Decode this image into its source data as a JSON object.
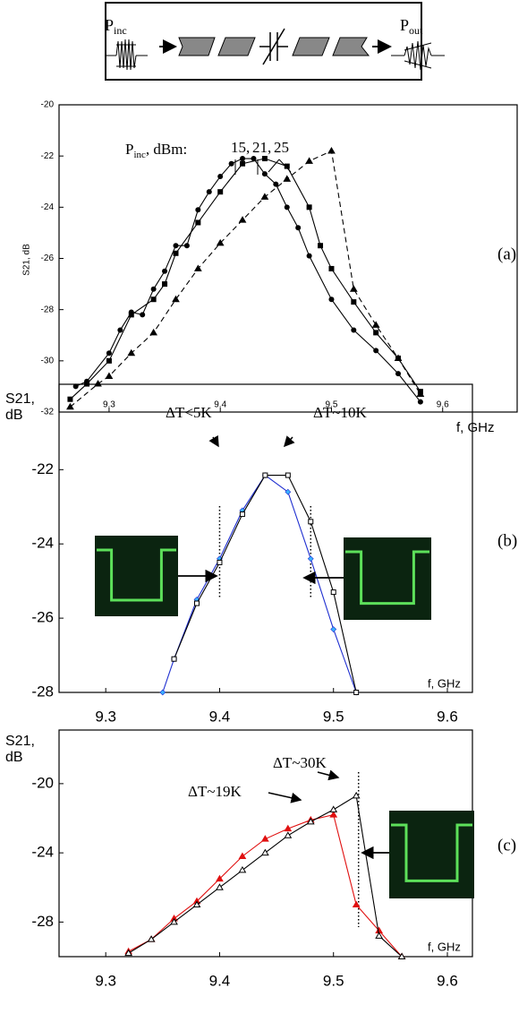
{
  "diagram": {
    "input_label": "P",
    "input_sub": "inc",
    "output_label": "P",
    "output_sub": "out"
  },
  "chart_data": [
    {
      "type": "line",
      "panel_label": "(a)",
      "y_label": "S21, dB",
      "x_label": "f, GHz",
      "annotation": [
        "P",
        "inc",
        ", dBm:"
      ],
      "xlim": [
        9.255,
        9.667
      ],
      "ylim": [
        -32,
        -20
      ],
      "xticks": [
        9.3,
        9.4,
        9.5,
        9.6
      ],
      "yticks": [
        -32,
        -30,
        -28,
        -26,
        -24,
        -22,
        -20
      ],
      "series": [
        {
          "name": "15,",
          "color": "#000000",
          "marker": "circle",
          "dash": false,
          "x": [
            9.27,
            9.28,
            9.3,
            9.31,
            9.32,
            9.33,
            9.34,
            9.35,
            9.36,
            9.37,
            9.38,
            9.39,
            9.4,
            9.41,
            9.42,
            9.43,
            9.44,
            9.45,
            9.46,
            9.47,
            9.48,
            9.5,
            9.52,
            9.54,
            9.56,
            9.58
          ],
          "values": [
            -31,
            -30.8,
            -29.7,
            -28.8,
            -28.1,
            -28.2,
            -27.2,
            -26.5,
            -25.5,
            -25.5,
            -24.1,
            -23.4,
            -22.8,
            -22.3,
            -22.1,
            -22.1,
            -22.7,
            -23.1,
            -24,
            -24.8,
            -25.9,
            -27.6,
            -28.8,
            -29.6,
            -30.5,
            -31.6
          ]
        },
        {
          "name": "21,",
          "color": "#000000",
          "marker": "square",
          "dash": false,
          "x": [
            9.265,
            9.28,
            9.3,
            9.32,
            9.34,
            9.35,
            9.36,
            9.38,
            9.4,
            9.42,
            9.44,
            9.46,
            9.48,
            9.49,
            9.5,
            9.52,
            9.54,
            9.56,
            9.58
          ],
          "values": [
            -31.5,
            -30.9,
            -30,
            -28.2,
            -27.6,
            -27,
            -25.8,
            -24.6,
            -23.4,
            -22.3,
            -22.1,
            -22.4,
            -24,
            -25.5,
            -26.4,
            -27.7,
            -28.9,
            -29.9,
            -31.2
          ]
        },
        {
          "name": "25",
          "color": "#000000",
          "marker": "triangle",
          "dash": true,
          "x": [
            9.265,
            9.29,
            9.3,
            9.32,
            9.34,
            9.36,
            9.38,
            9.4,
            9.42,
            9.44,
            9.46,
            9.48,
            9.5,
            9.52,
            9.54,
            9.56,
            9.58
          ],
          "values": [
            -31.8,
            -30.9,
            -30.6,
            -29.7,
            -28.9,
            -27.6,
            -26.4,
            -25.4,
            -24.5,
            -23.6,
            -22.9,
            -22.2,
            -21.8,
            -27.2,
            -28.6,
            -29.9,
            -31.3
          ]
        }
      ]
    },
    {
      "type": "line",
      "panel_label": "(b)",
      "y_label": [
        "S21,",
        "dB"
      ],
      "x_label": "f, GHz",
      "annotations": [
        "ΔT<5K",
        "ΔT~10K"
      ],
      "vlines": [
        9.4,
        9.48
      ],
      "xlim": [
        9.259,
        9.622
      ],
      "ylim": [
        -28,
        -19.7
      ],
      "xticks": [
        9.3,
        9.4,
        9.5,
        9.6
      ],
      "yticks": [
        -28,
        -26,
        -24,
        -22
      ],
      "series": [
        {
          "color": "#1f2fd0",
          "marker": "star",
          "dash": false,
          "x": [
            9.35,
            9.36,
            9.38,
            9.4,
            9.42,
            9.44,
            9.46,
            9.48,
            9.5,
            9.52
          ],
          "values": [
            -28,
            -27.1,
            -25.5,
            -24.4,
            -23.1,
            -22.15,
            -22.6,
            -24.4,
            -26.3,
            -28
          ]
        },
        {
          "color": "#000000",
          "marker": "open-square",
          "dash": false,
          "x": [
            9.36,
            9.38,
            9.4,
            9.42,
            9.44,
            9.46,
            9.48,
            9.5,
            9.52
          ],
          "values": [
            -27.1,
            -25.6,
            -24.5,
            -23.2,
            -22.15,
            -22.15,
            -23.4,
            -25.3,
            -28
          ]
        }
      ]
    },
    {
      "type": "line",
      "panel_label": "(c)",
      "y_label": [
        "S21,",
        "dB"
      ],
      "x_label": "f, GHz",
      "annotations": [
        "ΔT~19K",
        "ΔT~30K"
      ],
      "vlines": [
        9.522
      ],
      "xlim": [
        9.259,
        9.622
      ],
      "ylim": [
        -30,
        -16.9
      ],
      "xticks": [
        9.3,
        9.4,
        9.5,
        9.6
      ],
      "yticks": [
        -28,
        -24,
        -20
      ],
      "series": [
        {
          "color": "#e01010",
          "marker": "triangle",
          "dash": false,
          "x": [
            9.32,
            9.34,
            9.36,
            9.38,
            9.4,
            9.42,
            9.44,
            9.46,
            9.48,
            9.5,
            9.52,
            9.54,
            9.56
          ],
          "values": [
            -29.7,
            -29,
            -27.8,
            -26.8,
            -25.5,
            -24.2,
            -23.2,
            -22.6,
            -22.1,
            -21.8,
            -27,
            -28.5,
            -30
          ]
        },
        {
          "color": "#000000",
          "marker": "open-triangle",
          "dash": false,
          "x": [
            9.32,
            9.34,
            9.36,
            9.38,
            9.4,
            9.42,
            9.44,
            9.46,
            9.48,
            9.5,
            9.52,
            9.54,
            9.56
          ],
          "values": [
            -29.8,
            -29,
            -28,
            -27,
            -26,
            -25,
            -24,
            -23,
            -22.2,
            -21.5,
            -20.7,
            -28.8,
            -30
          ]
        }
      ]
    }
  ]
}
